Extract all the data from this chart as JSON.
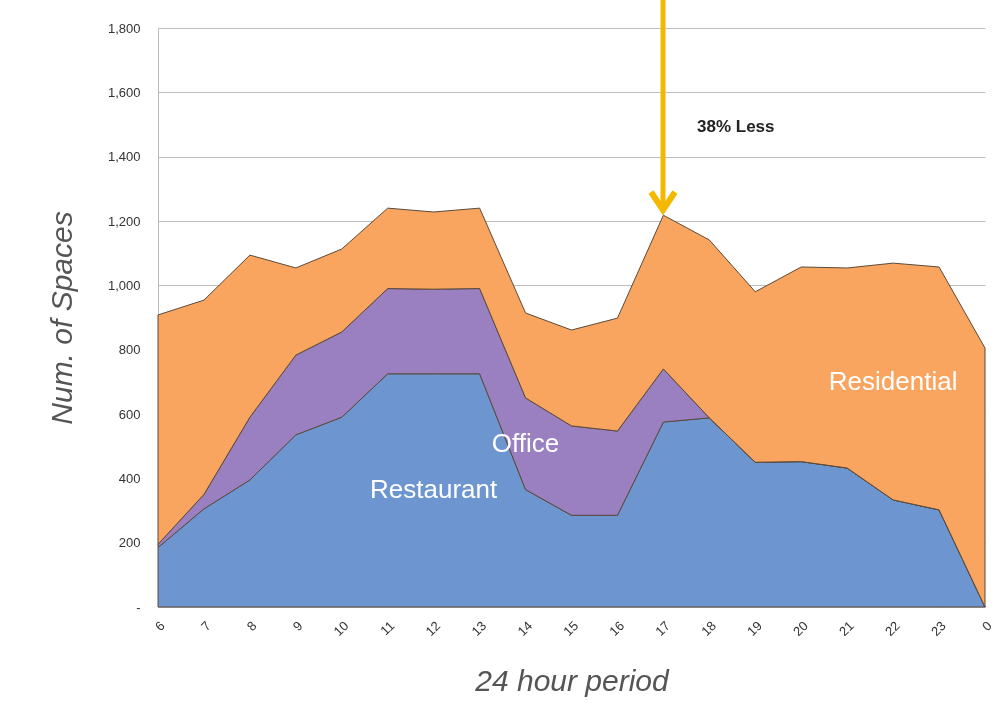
{
  "chart_data": {
    "type": "area",
    "stacked": true,
    "xlabel": "24 hour period",
    "ylabel": "Num. of Spaces",
    "categories": [
      "6",
      "7",
      "8",
      "9",
      "10",
      "11",
      "12",
      "13",
      "14",
      "15",
      "16",
      "17",
      "18",
      "19",
      "20",
      "21",
      "22",
      "23",
      "0"
    ],
    "series": [
      {
        "name": "Restaurant",
        "color": "#6d95cf",
        "values": [
          185,
          305,
          395,
          535,
          590,
          725,
          725,
          725,
          365,
          285,
          285,
          575,
          588,
          450,
          452,
          432,
          333,
          302,
          0
        ]
      },
      {
        "name": "Office",
        "color": "#9a80c0",
        "values": [
          10,
          45,
          195,
          248,
          265,
          265,
          263,
          265,
          285,
          278,
          262,
          165,
          0,
          0,
          0,
          0,
          0,
          0,
          0
        ]
      },
      {
        "name": "Residential",
        "color": "#f9a45f",
        "values": [
          713,
          604,
          504,
          271,
          258,
          250,
          240,
          250,
          264,
          298,
          351,
          478,
          553,
          530,
          605,
          622,
          736,
          755,
          805
        ]
      }
    ],
    "ylim": [
      0,
      1800
    ],
    "yticks": [
      {
        "value": 0,
        "label": "-"
      },
      200,
      400,
      600,
      800,
      {
        "value": 1000,
        "label": "1,000"
      },
      {
        "value": 1200,
        "label": "1,200"
      },
      {
        "value": 1400,
        "label": "1,400"
      },
      {
        "value": 1600,
        "label": "1,600"
      },
      {
        "value": 1800,
        "label": "1,800"
      }
    ],
    "grid": "y",
    "legend": false,
    "annotations": [
      "38% Less"
    ]
  }
}
